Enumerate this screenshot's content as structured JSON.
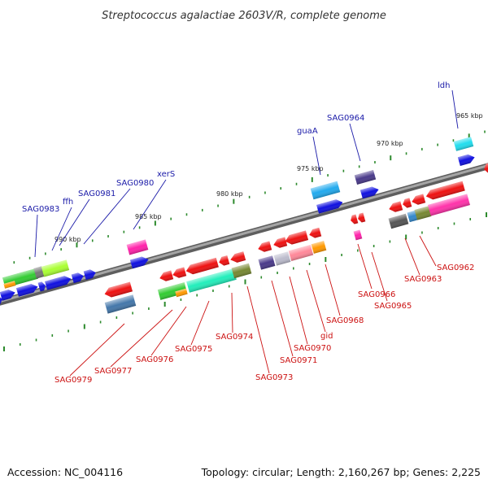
{
  "title": "Streptococcus agalactiae 2603V/R, complete genome",
  "footer": {
    "accession": "Accession: NC_004116",
    "summary": "Topology: circular; Length: 2,160,267 bp; Genes: 2,225"
  },
  "kbp_labels": [
    "965 kbp",
    "970 kbp",
    "975 kbp",
    "980 kbp",
    "985 kbp",
    "990 kbp"
  ],
  "gene_labels_top": [
    "ldh",
    "SAG0964",
    "guaA",
    "xerS",
    "SAG0980",
    "SAG0981",
    "ffh",
    "SAG0983"
  ],
  "gene_labels_bottom": [
    "SAG0962",
    "SAG0963",
    "SAG0965",
    "SAG0966",
    "SAG0968",
    "gid",
    "SAG0970",
    "SAG0971",
    "SAG0973",
    "SAG0974",
    "SAG0975",
    "SAG0976",
    "SAG0977",
    "SAG0979"
  ],
  "colors": {
    "backbone": "#7a7a7a",
    "tick": "#2d8a2d",
    "top_label": "#1a1aa8",
    "bottom_label": "#cc1111",
    "forward_gene": "#1010e0",
    "reverse_gene": "#ee1111"
  }
}
